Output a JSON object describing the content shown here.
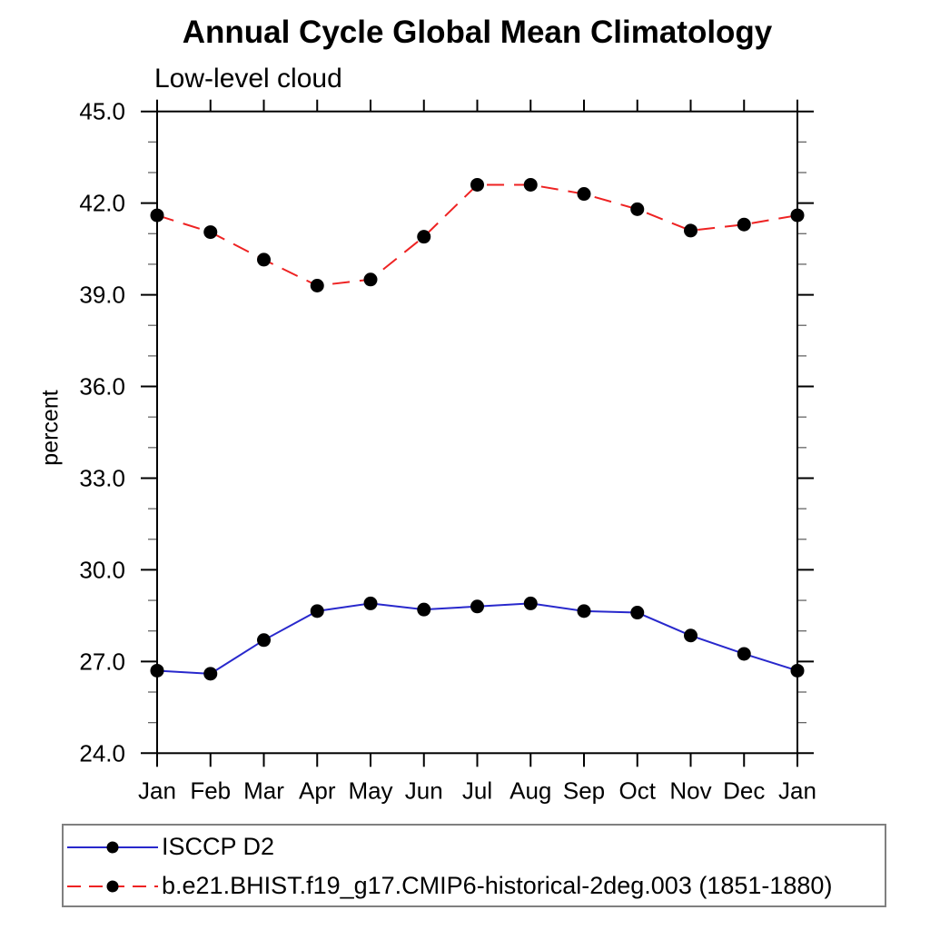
{
  "chart_data": {
    "type": "line",
    "title": "Annual Cycle Global Mean Climatology",
    "subtitle": "Low-level cloud",
    "ylabel": "percent",
    "xlabel": "",
    "x": [
      "Jan",
      "Feb",
      "Mar",
      "Apr",
      "May",
      "Jun",
      "Jul",
      "Aug",
      "Sep",
      "Oct",
      "Nov",
      "Dec",
      "Jan"
    ],
    "ylim": [
      24.0,
      45.0
    ],
    "ytick_major_step": 3.0,
    "ytick_minor_step": 1.0,
    "ytick_labels": [
      "24.0",
      "27.0",
      "30.0",
      "33.0",
      "36.0",
      "39.0",
      "42.0",
      "45.0"
    ],
    "grid": false,
    "legend_position": "bottom-left",
    "marker": "filled-circle",
    "marker_color": "#000000",
    "series": [
      {
        "name": "ISCCP D2",
        "color": "#2828cc",
        "line_style": "solid",
        "values": [
          26.7,
          26.6,
          27.7,
          28.65,
          28.9,
          28.7,
          28.8,
          28.9,
          28.65,
          28.6,
          27.85,
          27.25,
          26.7
        ]
      },
      {
        "name": "b.e21.BHIST.f19_g17.CMIP6-historical-2deg.003 (1851-1880)",
        "color": "#ee2222",
        "line_style": "dashed",
        "values": [
          41.6,
          41.05,
          40.15,
          39.3,
          39.5,
          40.9,
          42.6,
          42.6,
          42.3,
          41.8,
          41.1,
          41.3,
          41.6
        ]
      }
    ]
  }
}
